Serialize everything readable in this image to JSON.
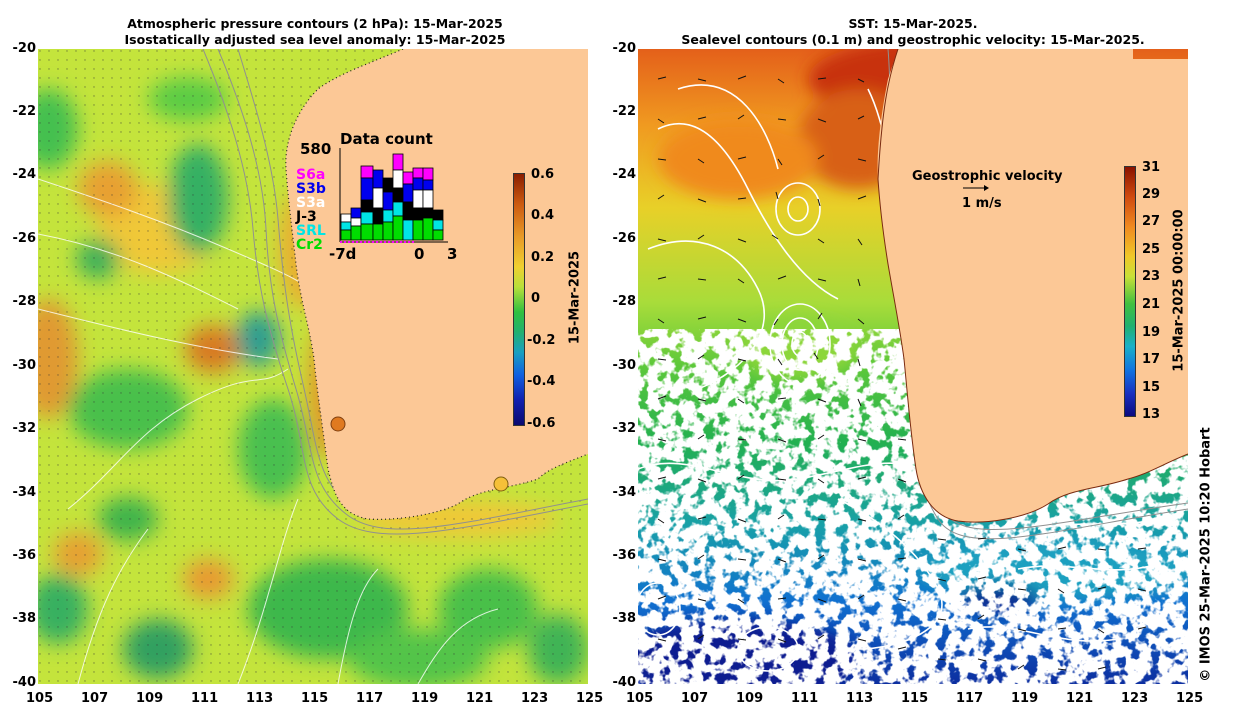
{
  "left_panel": {
    "title_line1": "Atmospheric pressure contours (2 hPa): 15-Mar-2025",
    "title_line2": "Isostatically adjusted sea level anomaly: 15-Mar-2025",
    "lat_ticks": [
      "-20",
      "-22",
      "-24",
      "-26",
      "-28",
      "-30",
      "-32",
      "-34",
      "-36",
      "-38",
      "-40"
    ],
    "lon_ticks": [
      "105",
      "107",
      "109",
      "111",
      "113",
      "115",
      "117",
      "119",
      "121",
      "123",
      "125"
    ],
    "colorbar": {
      "ticks": [
        "0.6",
        "0.4",
        "0.2",
        "0",
        "-0.2",
        "-0.4",
        "-0.6"
      ],
      "label": "15-Mar-2025"
    },
    "data_count": {
      "title": "Data count",
      "max_label": "580",
      "x_labels": [
        "-7d",
        "0",
        "3"
      ],
      "missions": [
        {
          "name": "S6a",
          "color": "#ff00ff"
        },
        {
          "name": "S3b",
          "color": "#0000ee"
        },
        {
          "name": "S3a",
          "color": "#ffffff"
        },
        {
          "name": "J-3",
          "color": "#000000"
        },
        {
          "name": "SRL",
          "color": "#00e5e5"
        },
        {
          "name": "Cr2",
          "color": "#00dd00"
        }
      ]
    }
  },
  "right_panel": {
    "title_line1": "SST: 15-Mar-2025.",
    "title_line2": "Sealevel contours (0.1 m) and geostrophic velocity: 15-Mar-2025.",
    "lat_ticks": [
      "-20",
      "-22",
      "-24",
      "-26",
      "-28",
      "-30",
      "-32",
      "-34",
      "-36",
      "-38",
      "-40"
    ],
    "lon_ticks": [
      "105",
      "107",
      "109",
      "111",
      "113",
      "115",
      "117",
      "119",
      "121",
      "123",
      "125"
    ],
    "velocity_legend": {
      "title": "Geostrophic velocity",
      "scale": "1 m/s"
    },
    "colorbar": {
      "ticks": [
        "31",
        "29",
        "27",
        "25",
        "23",
        "21",
        "19",
        "17",
        "15",
        "13"
      ],
      "label": "15-Mar-2025 00:00:00"
    }
  },
  "credit": "© IMOS 25-Mar-2025 10:20 Hobart",
  "colors": {
    "land": "#fcc896",
    "sla_base": "#bde23a",
    "sst_warm": "#ee8811",
    "sst_cold": "#1166cc"
  }
}
